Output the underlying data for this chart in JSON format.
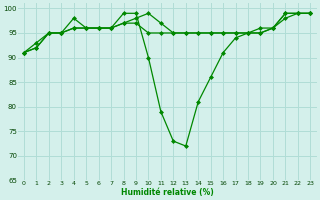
{
  "xlabel": "Humidité relative (%)",
  "background_color": "#d4f0eb",
  "grid_color": "#b0ddd6",
  "line_color": "#008800",
  "xlim": [
    -0.5,
    23.5
  ],
  "ylim": [
    65,
    101
  ],
  "yticks": [
    65,
    70,
    75,
    80,
    85,
    90,
    95,
    100
  ],
  "xticks": [
    0,
    1,
    2,
    3,
    4,
    5,
    6,
    7,
    8,
    9,
    10,
    11,
    12,
    13,
    14,
    15,
    16,
    17,
    18,
    19,
    20,
    21,
    22,
    23
  ],
  "series": [
    {
      "x": [
        0,
        1,
        2,
        3,
        4,
        5,
        6,
        7,
        8,
        9,
        10,
        11,
        12,
        13,
        14,
        15,
        16,
        17,
        18,
        19,
        20,
        21,
        22,
        23
      ],
      "y": [
        91,
        92,
        95,
        95,
        98,
        96,
        96,
        96,
        99,
        99,
        90,
        79,
        73,
        72,
        81,
        86,
        91,
        94,
        95,
        96,
        96,
        99,
        99,
        99
      ]
    },
    {
      "x": [
        0,
        1,
        2,
        3,
        4,
        5,
        6,
        7,
        8,
        9,
        10,
        11,
        12,
        13,
        14,
        15,
        16,
        17,
        18,
        19,
        20,
        21,
        22,
        23
      ],
      "y": [
        91,
        93,
        95,
        95,
        96,
        96,
        96,
        96,
        97,
        98,
        99,
        97,
        95,
        95,
        95,
        95,
        95,
        95,
        95,
        95,
        96,
        99,
        99,
        99
      ]
    },
    {
      "x": [
        0,
        1,
        2,
        3,
        4,
        5,
        6,
        7,
        8,
        9,
        10,
        11,
        12,
        13,
        14,
        15,
        16,
        17,
        18,
        19,
        20,
        21,
        22,
        23
      ],
      "y": [
        91,
        92,
        95,
        95,
        96,
        96,
        96,
        96,
        97,
        97,
        95,
        95,
        95,
        95,
        95,
        95,
        95,
        95,
        95,
        95,
        96,
        98,
        99,
        99
      ]
    }
  ]
}
